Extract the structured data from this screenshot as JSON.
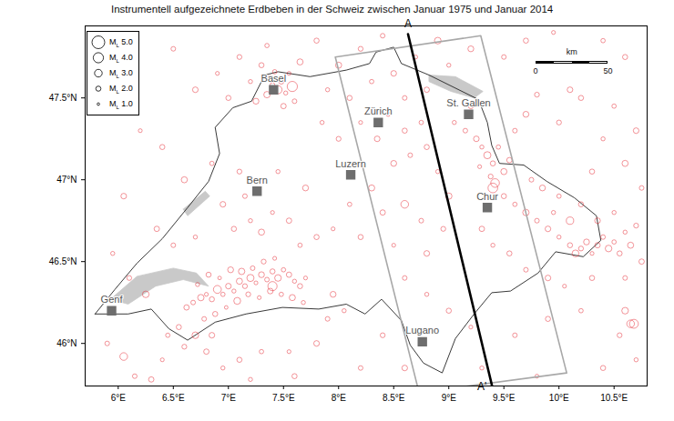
{
  "chart_data": {
    "type": "map",
    "title": "Instrumentell aufgezeichnete Erdbeben in der Schweiz zwischen Januar 1975 und Januar 2014",
    "color": "#e4202a",
    "legend": "top-left",
    "xlim": [
      5.7,
      10.8
    ],
    "ylim": [
      45.74,
      47.94
    ],
    "xticks": [
      {
        "value": 6,
        "label": "6°E"
      },
      {
        "value": 6.5,
        "label": "6.5°E"
      },
      {
        "value": 7,
        "label": "7°E"
      },
      {
        "value": 7.5,
        "label": "7.5°E"
      },
      {
        "value": 8,
        "label": "8°E"
      },
      {
        "value": 8.5,
        "label": "8.5°E"
      },
      {
        "value": 9,
        "label": "9°E"
      },
      {
        "value": 9.5,
        "label": "9.5°E"
      },
      {
        "value": 10,
        "label": "10°E"
      },
      {
        "value": 10.5,
        "label": "10.5°E"
      }
    ],
    "yticks": [
      {
        "value": 46,
        "label": "46°N"
      },
      {
        "value": 46.5,
        "label": "46.5°N"
      },
      {
        "value": 47,
        "label": "47°N"
      },
      {
        "value": 47.5,
        "label": "47.5°N"
      }
    ],
    "legend_entries": [
      {
        "symbol": "M",
        "subscript": "L",
        "value": 5,
        "label": "5.0"
      },
      {
        "symbol": "M",
        "subscript": "L",
        "value": 4,
        "label": "4.0"
      },
      {
        "symbol": "M",
        "subscript": "L",
        "value": 3,
        "label": "3.0"
      },
      {
        "symbol": "M",
        "subscript": "L",
        "value": 2,
        "label": "2.0"
      },
      {
        "symbol": "M",
        "subscript": "L",
        "value": 1,
        "label": "1.0"
      }
    ],
    "scale_bar": {
      "label": "km",
      "ticks": [
        0,
        50
      ]
    },
    "cities": [
      {
        "name": "Basel",
        "lon": 7.41,
        "lat": 47.55
      },
      {
        "name": "Zürich",
        "lon": 8.36,
        "lat": 47.35
      },
      {
        "name": "St. Gallen",
        "lon": 9.18,
        "lat": 47.4
      },
      {
        "name": "Luzern",
        "lon": 8.11,
        "lat": 47.03
      },
      {
        "name": "Bern",
        "lon": 7.26,
        "lat": 46.93
      },
      {
        "name": "Chur",
        "lon": 9.35,
        "lat": 46.83
      },
      {
        "name": "Genf",
        "lon": 5.94,
        "lat": 46.2
      },
      {
        "name": "Lugano",
        "lon": 8.76,
        "lat": 46.01
      }
    ],
    "profile": {
      "labels": [
        "A",
        "A'"
      ],
      "start": [
        8.63,
        47.89
      ],
      "end": [
        9.4,
        45.72
      ],
      "box": [
        [
          7.97,
          47.75
        ],
        [
          9.29,
          47.88
        ],
        [
          10.07,
          45.82
        ],
        [
          8.73,
          45.7
        ]
      ]
    },
    "borders": [
      [
        5.79,
        46.18
      ],
      [
        5.97,
        46.33
      ],
      [
        6.17,
        46.49
      ],
      [
        6.4,
        46.64
      ],
      [
        6.63,
        46.83
      ],
      [
        6.82,
        46.99
      ],
      [
        6.92,
        47.16
      ],
      [
        6.88,
        47.32
      ],
      [
        7.04,
        47.44
      ],
      [
        7.21,
        47.48
      ],
      [
        7.33,
        47.64
      ],
      [
        7.45,
        47.66
      ],
      [
        7.74,
        47.63
      ],
      [
        8.07,
        47.67
      ],
      [
        8.28,
        47.71
      ],
      [
        8.34,
        47.78
      ],
      [
        8.5,
        47.81
      ],
      [
        8.57,
        47.71
      ],
      [
        8.82,
        47.64
      ],
      [
        9.06,
        47.56
      ],
      [
        9.27,
        47.49
      ],
      [
        9.35,
        47.35
      ],
      [
        9.39,
        47.21
      ],
      [
        9.46,
        47.1
      ],
      [
        9.68,
        47.09
      ],
      [
        9.89,
        46.99
      ],
      [
        10.14,
        46.89
      ],
      [
        10.34,
        46.78
      ],
      [
        10.38,
        46.63
      ],
      [
        10.22,
        46.53
      ],
      [
        9.97,
        46.56
      ],
      [
        9.81,
        46.43
      ],
      [
        9.56,
        46.32
      ],
      [
        9.39,
        46.31
      ],
      [
        9.23,
        46.18
      ],
      [
        9.06,
        46.03
      ],
      [
        8.94,
        45.82
      ],
      [
        8.77,
        45.88
      ],
      [
        8.65,
        45.99
      ],
      [
        8.57,
        46.14
      ],
      [
        8.39,
        46.27
      ],
      [
        8.24,
        46.18
      ],
      [
        8.07,
        46.24
      ],
      [
        7.82,
        46.21
      ],
      [
        7.49,
        46.22
      ],
      [
        7.16,
        46.18
      ],
      [
        6.88,
        46.13
      ],
      [
        6.63,
        46.02
      ],
      [
        6.46,
        46.09
      ],
      [
        6.3,
        46.21
      ],
      [
        6.09,
        46.18
      ]
    ],
    "lakes": [
      [
        [
          5.93,
          46.27
        ],
        [
          6.17,
          46.41
        ],
        [
          6.5,
          46.46
        ],
        [
          6.71,
          46.43
        ],
        [
          6.82,
          46.35
        ],
        [
          6.59,
          46.39
        ],
        [
          6.34,
          46.35
        ],
        [
          6.09,
          46.24
        ]
      ],
      [
        [
          8.82,
          47.64
        ],
        [
          9.06,
          47.63
        ],
        [
          9.31,
          47.54
        ],
        [
          9.23,
          47.5
        ],
        [
          9.02,
          47.54
        ],
        [
          8.82,
          47.6
        ]
      ],
      [
        [
          6.59,
          46.82
        ],
        [
          6.79,
          46.93
        ],
        [
          6.83,
          46.9
        ],
        [
          6.63,
          46.78
        ]
      ]
    ],
    "quakes": [
      [
        6.62,
        46.22,
        2.1
      ],
      [
        6.68,
        46.25,
        1.8
      ],
      [
        6.75,
        46.28,
        2.5
      ],
      [
        6.8,
        46.3,
        1.5
      ],
      [
        6.85,
        46.27,
        2.0
      ],
      [
        6.9,
        46.33,
        3.1
      ],
      [
        6.95,
        46.3,
        1.7
      ],
      [
        7.0,
        46.35,
        2.2
      ],
      [
        7.05,
        46.32,
        1.6
      ],
      [
        7.1,
        46.38,
        2.4
      ],
      [
        7.15,
        46.35,
        1.9
      ],
      [
        7.2,
        46.4,
        2.8
      ],
      [
        7.25,
        46.37,
        1.5
      ],
      [
        7.3,
        46.42,
        2.3
      ],
      [
        7.35,
        46.39,
        1.8
      ],
      [
        7.4,
        46.44,
        2.0
      ],
      [
        7.45,
        46.4,
        2.6
      ],
      [
        7.5,
        46.45,
        1.7
      ],
      [
        7.55,
        46.42,
        2.1
      ],
      [
        7.6,
        46.38,
        1.6
      ],
      [
        7.18,
        46.3,
        1.9
      ],
      [
        7.08,
        46.26,
        2.7
      ],
      [
        6.98,
        46.22,
        1.4
      ],
      [
        6.88,
        46.18,
        2.0
      ],
      [
        6.78,
        46.15,
        1.8
      ],
      [
        7.28,
        46.28,
        1.5
      ],
      [
        7.38,
        46.32,
        2.2
      ],
      [
        7.48,
        46.3,
        1.7
      ],
      [
        7.58,
        46.28,
        2.4
      ],
      [
        7.68,
        46.25,
        1.6
      ],
      [
        7.65,
        46.35,
        2.0
      ],
      [
        7.7,
        46.4,
        1.5
      ],
      [
        7.22,
        46.46,
        1.8
      ],
      [
        7.12,
        46.44,
        2.5
      ],
      [
        6.72,
        46.36,
        1.6
      ],
      [
        6.82,
        46.42,
        2.0
      ],
      [
        6.92,
        46.4,
        1.4
      ],
      [
        7.32,
        46.5,
        1.9
      ],
      [
        7.42,
        46.52,
        1.5
      ],
      [
        7.02,
        46.45,
        2.3
      ],
      [
        6.55,
        46.1,
        2.0
      ],
      [
        6.45,
        46.05,
        1.7
      ],
      [
        6.7,
        46.05,
        2.6
      ],
      [
        6.6,
        45.98,
        1.9
      ],
      [
        6.85,
        46.05,
        2.2
      ],
      [
        6.4,
        45.9,
        1.5
      ],
      [
        6.05,
        45.92,
        3.0
      ],
      [
        6.15,
        45.8,
        1.8
      ],
      [
        6.3,
        45.78,
        2.1
      ],
      [
        6.95,
        45.85,
        1.6
      ],
      [
        7.1,
        45.9,
        2.0
      ],
      [
        7.3,
        45.95,
        1.7
      ],
      [
        7.55,
        45.95,
        1.5
      ],
      [
        7.8,
        46.0,
        2.2
      ],
      [
        7.9,
        46.15,
        1.8
      ],
      [
        8.05,
        46.2,
        1.6
      ],
      [
        7.95,
        46.3,
        2.3
      ],
      [
        7.05,
        46.7,
        2.0
      ],
      [
        7.2,
        46.75,
        1.6
      ],
      [
        7.3,
        46.68,
        2.4
      ],
      [
        7.4,
        46.8,
        1.5
      ],
      [
        7.55,
        46.75,
        2.1
      ],
      [
        7.15,
        46.9,
        1.8
      ],
      [
        6.95,
        46.85,
        2.2
      ],
      [
        7.65,
        46.6,
        1.7
      ],
      [
        7.8,
        46.65,
        2.0
      ],
      [
        7.95,
        46.7,
        1.5
      ],
      [
        7.1,
        47.05,
        1.9
      ],
      [
        7.45,
        47.05,
        1.6
      ],
      [
        7.7,
        46.95,
        2.3
      ],
      [
        6.5,
        46.6,
        1.8
      ],
      [
        6.35,
        46.7,
        2.1
      ],
      [
        6.7,
        46.65,
        1.6
      ],
      [
        6.6,
        47.0,
        2.4
      ],
      [
        6.85,
        47.1,
        1.7
      ],
      [
        6.4,
        47.2,
        2.0
      ],
      [
        6.2,
        47.3,
        1.5
      ],
      [
        6.05,
        46.9,
        2.2
      ],
      [
        5.95,
        46.55,
        1.6
      ],
      [
        6.1,
        46.4,
        1.9
      ],
      [
        6.25,
        46.3,
        2.6
      ],
      [
        5.9,
        46.0,
        1.8
      ],
      [
        7.35,
        47.52,
        2.5
      ],
      [
        7.4,
        47.58,
        1.8
      ],
      [
        7.45,
        47.55,
        3.2
      ],
      [
        7.48,
        47.6,
        2.0
      ],
      [
        7.52,
        47.53,
        1.6
      ],
      [
        7.38,
        47.62,
        2.2
      ],
      [
        7.42,
        47.66,
        1.7
      ],
      [
        7.3,
        47.7,
        2.0
      ],
      [
        7.55,
        47.65,
        1.5
      ],
      [
        7.25,
        47.48,
        2.3
      ],
      [
        7.6,
        47.48,
        1.8
      ],
      [
        7.5,
        47.45,
        2.1
      ],
      [
        7.2,
        47.6,
        1.6
      ],
      [
        7.65,
        47.72,
        2.4
      ],
      [
        7.1,
        47.75,
        1.9
      ],
      [
        7.35,
        47.82,
        1.7
      ],
      [
        7.0,
        47.5,
        2.0
      ],
      [
        6.9,
        47.65,
        1.5
      ],
      [
        6.7,
        47.55,
        2.2
      ],
      [
        6.5,
        47.8,
        1.8
      ],
      [
        7.8,
        47.85,
        2.0
      ],
      [
        7.58,
        47.57,
        4.0
      ],
      [
        7.9,
        47.55,
        1.6
      ],
      [
        8.1,
        47.5,
        2.0
      ],
      [
        8.3,
        47.6,
        1.7
      ],
      [
        8.5,
        47.65,
        2.2
      ],
      [
        8.7,
        47.75,
        1.5
      ],
      [
        8.2,
        47.8,
        1.9
      ],
      [
        8.0,
        47.7,
        2.4
      ],
      [
        8.6,
        47.5,
        1.8
      ],
      [
        8.8,
        47.55,
        2.1
      ],
      [
        9.0,
        47.7,
        1.6
      ],
      [
        9.2,
        47.8,
        2.3
      ],
      [
        9.5,
        47.75,
        1.8
      ],
      [
        9.7,
        47.85,
        2.0
      ],
      [
        9.95,
        47.9,
        1.5
      ],
      [
        10.1,
        47.55,
        2.2
      ],
      [
        10.4,
        47.85,
        1.7
      ],
      [
        10.6,
        47.75,
        2.0
      ],
      [
        9.8,
        47.52,
        1.9
      ],
      [
        8.9,
        47.85,
        2.6
      ],
      [
        8.4,
        47.88,
        1.8
      ],
      [
        8.45,
        47.4,
        1.6
      ],
      [
        8.6,
        47.3,
        2.0
      ],
      [
        8.75,
        47.35,
        1.7
      ],
      [
        8.35,
        47.25,
        2.2
      ],
      [
        8.2,
        47.35,
        1.5
      ],
      [
        8.0,
        47.25,
        1.9
      ],
      [
        7.85,
        47.35,
        1.6
      ],
      [
        8.5,
        47.1,
        2.3
      ],
      [
        8.65,
        47.15,
        1.8
      ],
      [
        8.8,
        47.2,
        2.0
      ],
      [
        8.9,
        47.05,
        1.6
      ],
      [
        8.3,
        46.95,
        2.4
      ],
      [
        8.1,
        46.85,
        1.7
      ],
      [
        8.4,
        46.8,
        2.1
      ],
      [
        8.6,
        46.85,
        3.0
      ],
      [
        8.75,
        46.75,
        1.8
      ],
      [
        8.2,
        46.65,
        2.0
      ],
      [
        8.5,
        46.6,
        1.5
      ],
      [
        8.8,
        46.55,
        2.2
      ],
      [
        8.95,
        46.7,
        1.9
      ],
      [
        9.0,
        46.9,
        2.5
      ],
      [
        9.15,
        47.3,
        1.8
      ],
      [
        9.25,
        47.25,
        2.2
      ],
      [
        9.3,
        47.2,
        1.6
      ],
      [
        9.35,
        47.15,
        2.8
      ],
      [
        9.4,
        47.1,
        2.0
      ],
      [
        9.45,
        47.2,
        1.7
      ],
      [
        9.5,
        47.05,
        2.4
      ],
      [
        9.38,
        47.02,
        1.9
      ],
      [
        9.42,
        46.98,
        3.4
      ],
      [
        9.28,
        47.08,
        1.5
      ],
      [
        9.55,
        47.12,
        2.1
      ],
      [
        9.05,
        47.35,
        1.6
      ],
      [
        9.2,
        47.45,
        2.0
      ],
      [
        9.6,
        47.3,
        1.8
      ],
      [
        9.7,
        47.4,
        2.3
      ],
      [
        9.4,
        46.95,
        3.8
      ],
      [
        9.5,
        46.9,
        2.0
      ],
      [
        9.6,
        46.85,
        1.7
      ],
      [
        9.7,
        46.8,
        2.5
      ],
      [
        9.8,
        46.75,
        1.8
      ],
      [
        9.9,
        46.7,
        2.2
      ],
      [
        10.0,
        46.65,
        1.6
      ],
      [
        10.1,
        46.6,
        2.0
      ],
      [
        10.15,
        46.55,
        2.7
      ],
      [
        10.2,
        46.58,
        1.9
      ],
      [
        10.25,
        46.62,
        2.3
      ],
      [
        10.3,
        46.55,
        1.5
      ],
      [
        10.35,
        46.6,
        2.1
      ],
      [
        10.4,
        46.65,
        1.8
      ],
      [
        10.45,
        46.58,
        2.6
      ],
      [
        10.5,
        46.62,
        1.7
      ],
      [
        10.55,
        46.55,
        2.0
      ],
      [
        10.6,
        46.68,
        1.6
      ],
      [
        10.65,
        46.6,
        2.4
      ],
      [
        10.7,
        46.72,
        1.9
      ],
      [
        10.35,
        46.75,
        2.2
      ],
      [
        10.5,
        46.8,
        1.6
      ],
      [
        10.2,
        46.85,
        2.0
      ],
      [
        10.0,
        46.9,
        1.7
      ],
      [
        9.85,
        46.95,
        2.3
      ],
      [
        9.75,
        47.0,
        1.8
      ],
      [
        9.3,
        46.7,
        2.1
      ],
      [
        9.4,
        46.6,
        1.6
      ],
      [
        9.55,
        46.55,
        2.0
      ],
      [
        9.7,
        46.45,
        1.8
      ],
      [
        9.9,
        46.4,
        2.2
      ],
      [
        10.05,
        46.35,
        1.5
      ],
      [
        10.3,
        46.4,
        2.0
      ],
      [
        10.1,
        46.75,
        2.9
      ],
      [
        9.95,
        46.8,
        1.6
      ],
      [
        10.6,
        46.4,
        1.8
      ],
      [
        10.75,
        46.5,
        2.1
      ],
      [
        8.6,
        46.4,
        1.8
      ],
      [
        8.8,
        46.3,
        1.6
      ],
      [
        9.0,
        46.2,
        2.0
      ],
      [
        9.2,
        46.1,
        1.5
      ],
      [
        8.4,
        46.05,
        1.9
      ],
      [
        8.6,
        45.85,
        2.2
      ],
      [
        9.3,
        45.85,
        1.6
      ],
      [
        9.6,
        46.05,
        1.8
      ],
      [
        9.9,
        46.15,
        2.0
      ],
      [
        10.2,
        46.2,
        1.7
      ],
      [
        10.6,
        46.2,
        2.6
      ],
      [
        10.65,
        46.12,
        3.0
      ],
      [
        10.55,
        46.05,
        1.9
      ],
      [
        10.7,
        45.9,
        1.6
      ],
      [
        10.4,
        45.85,
        2.0
      ],
      [
        9.8,
        45.8,
        1.5
      ],
      [
        8.2,
        45.85,
        1.8
      ],
      [
        7.6,
        45.8,
        2.0
      ],
      [
        7.2,
        45.78,
        1.6
      ],
      [
        6.8,
        45.95,
        2.1
      ],
      [
        10.2,
        47.5,
        2.0
      ],
      [
        10.5,
        47.45,
        1.7
      ],
      [
        10.7,
        47.3,
        2.2
      ],
      [
        10.4,
        47.25,
        1.6
      ],
      [
        10.0,
        47.35,
        1.9
      ],
      [
        10.6,
        47.1,
        2.4
      ],
      [
        10.75,
        46.95,
        1.8
      ],
      [
        10.3,
        47.05,
        2.0
      ],
      [
        7.4,
        46.35,
        3.6
      ],
      [
        10.68,
        46.12,
        3.5
      ]
    ]
  }
}
